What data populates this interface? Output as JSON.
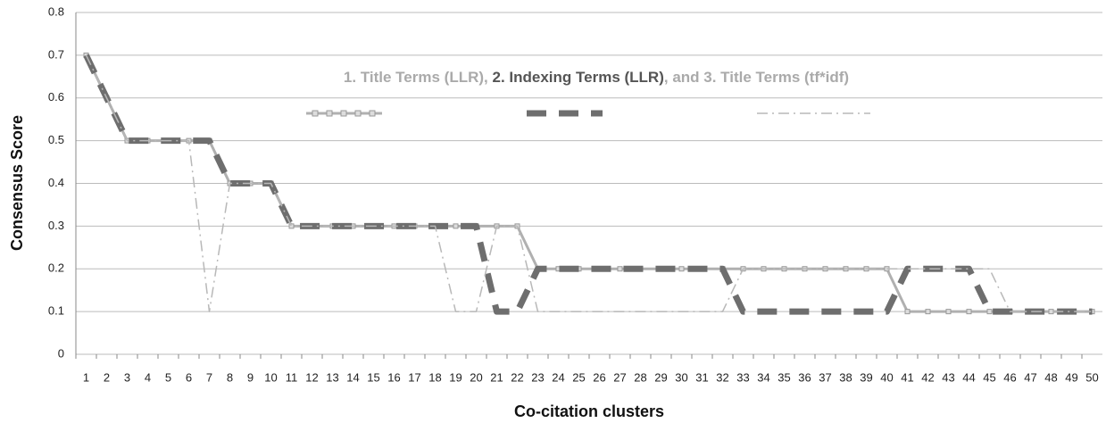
{
  "chart_data": {
    "type": "line",
    "x_label": "Co-citation clusters",
    "y_label": "Consensus Score",
    "legend_separators": [
      ", ",
      ", and "
    ],
    "categories": [
      "1",
      "2",
      "3",
      "4",
      "5",
      "6",
      "7",
      "8",
      "9",
      "10",
      "11",
      "12",
      "13",
      "14",
      "15",
      "16",
      "17",
      "18",
      "19",
      "20",
      "21",
      "22",
      "23",
      "24",
      "25",
      "26",
      "27",
      "28",
      "29",
      "30",
      "31",
      "32",
      "33",
      "34",
      "35",
      "36",
      "37",
      "38",
      "39",
      "40",
      "41",
      "42",
      "43",
      "44",
      "45",
      "46",
      "47",
      "48",
      "49",
      "50"
    ],
    "ylim": [
      0,
      0.8
    ],
    "yticks": [
      0,
      0.1,
      0.2,
      0.3,
      0.4,
      0.5,
      0.6,
      0.7,
      0.8
    ],
    "grid": true,
    "series": [
      {
        "name": "1. Title Terms (LLR)",
        "color": "#b0b0b0",
        "style": "solid-markers",
        "values": [
          0.7,
          0.6,
          0.5,
          0.5,
          0.5,
          0.5,
          0.5,
          0.4,
          0.4,
          0.4,
          0.3,
          0.3,
          0.3,
          0.3,
          0.3,
          0.3,
          0.3,
          0.3,
          0.3,
          0.3,
          0.3,
          0.3,
          0.2,
          0.2,
          0.2,
          0.2,
          0.2,
          0.2,
          0.2,
          0.2,
          0.2,
          0.2,
          0.2,
          0.2,
          0.2,
          0.2,
          0.2,
          0.2,
          0.2,
          0.2,
          0.1,
          0.1,
          0.1,
          0.1,
          0.1,
          0.1,
          0.1,
          0.1,
          0.1,
          0.1
        ]
      },
      {
        "name": "2. Indexing Terms (LLR)",
        "color": "#6e6e6e",
        "style": "dashed",
        "values": [
          0.7,
          0.6,
          0.5,
          0.5,
          0.5,
          0.5,
          0.5,
          0.4,
          0.4,
          0.4,
          0.3,
          0.3,
          0.3,
          0.3,
          0.3,
          0.3,
          0.3,
          0.3,
          0.3,
          0.3,
          0.1,
          0.1,
          0.2,
          0.2,
          0.2,
          0.2,
          0.2,
          0.2,
          0.2,
          0.2,
          0.2,
          0.2,
          0.1,
          0.1,
          0.1,
          0.1,
          0.1,
          0.1,
          0.1,
          0.1,
          0.2,
          0.2,
          0.2,
          0.2,
          0.1,
          0.1,
          0.1,
          0.1,
          0.1,
          0.1
        ]
      },
      {
        "name": "3. Title Terms (tf*idf)",
        "color": "#b8b8b8",
        "style": "dashdot",
        "values": [
          0.7,
          0.6,
          0.5,
          0.5,
          0.5,
          0.5,
          0.1,
          0.4,
          0.4,
          0.4,
          0.3,
          0.3,
          0.3,
          0.3,
          0.3,
          0.3,
          0.3,
          0.3,
          0.1,
          0.1,
          0.3,
          0.3,
          0.1,
          0.1,
          0.1,
          0.1,
          0.1,
          0.1,
          0.1,
          0.1,
          0.1,
          0.1,
          0.2,
          0.2,
          0.2,
          0.2,
          0.2,
          0.2,
          0.2,
          0.2,
          0.2,
          0.2,
          0.2,
          0.2,
          0.2,
          0.1,
          0.1,
          0.1,
          0.1,
          0.1
        ]
      }
    ]
  }
}
